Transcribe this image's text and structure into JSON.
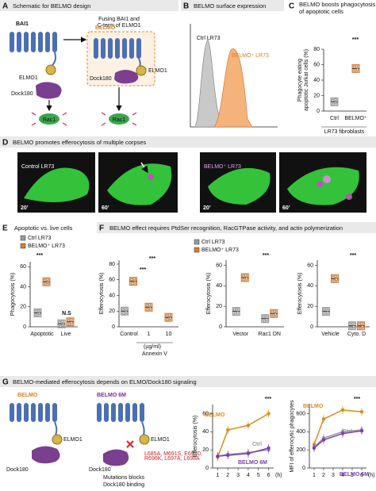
{
  "panels": {
    "a": {
      "letter": "A",
      "title": "Schematic for BELMO design",
      "bai1": "BAI1",
      "arrow_text": [
        "Fusing BAI1 and",
        "C-term of ELMO1"
      ],
      "belmo": "BELMO",
      "elmo1_left": "ELMO1",
      "dock_left": "Dock180",
      "rac_left": "Rac1",
      "elmo1_right": "ELMO1",
      "dock_right": "Dock180",
      "rac_right": "Rac1"
    },
    "b": {
      "letter": "B",
      "title": "BELMO surface expression",
      "ctrl": "Ctrl LR73",
      "belmo": "BELMO⁺ LR73"
    },
    "c": {
      "letter": "C",
      "title_lines": [
        "BELMO boosts phagocytosis",
        "of apoptotic cells"
      ],
      "xlabel": "LR73 fibroblasts"
    },
    "d": {
      "letter": "D",
      "title": "BELMO promotes efferocytosis of multiple corpses",
      "images": [
        {
          "label": "Control LR73",
          "time": "20’"
        },
        {
          "time": "60’"
        },
        {
          "label": "BELMO⁺ LR73",
          "time": "20’"
        },
        {
          "time": "60’"
        }
      ]
    },
    "e": {
      "letter": "E",
      "title": "Apoptotic vs. live cells"
    },
    "f": {
      "letter": "F",
      "title": "BELMO effect requires PtdSer recognition, RacGTPase activity, and actin polymerization",
      "unit": "(µg/ml)",
      "group": "Annexin V"
    },
    "g": {
      "letter": "G",
      "title": "BELMO-mediated efferocytosis depends on ELMO/Dock180 signaling",
      "left": {
        "name": "BELMO",
        "elmo1": "ELMO1",
        "dock": "Dock180"
      },
      "right": {
        "name": "BELMO 6M",
        "elmo1": "ELMO1",
        "dock": "Dock180",
        "note_lines": [
          "Mutations blocks",
          "Dock180 binding"
        ],
        "mutations": [
          "L685A, M691S, E692D,",
          "R696K, L697A, L698A"
        ]
      }
    }
  },
  "charts": [
    {
      "type": "box",
      "ylabel_lines": [
        "Phagocyte eating",
        "apoptotic Jurkat cells (%)"
      ],
      "ylim": [
        0,
        80
      ],
      "yticks": [
        0,
        20,
        40,
        60,
        80
      ],
      "categories": [
        "Ctrl",
        "BELMO⁺"
      ],
      "series": [
        {
          "color": "#9a9a9a",
          "values": [
            12,
            null
          ]
        },
        {
          "color": "#e07b2a",
          "values": [
            null,
            55
          ]
        }
      ],
      "annotations": [
        "***"
      ]
    },
    {
      "type": "box",
      "ylabel_lines": [
        "Phagocytosis (%)"
      ],
      "ylim": [
        0,
        65
      ],
      "yticks": [
        0,
        20,
        40,
        60
      ],
      "categories": [
        "Apoptotic",
        "Live"
      ],
      "series": [
        {
          "name": "Ctrl LR73",
          "color": "#9a9a9a",
          "values": [
            14,
            3
          ]
        },
        {
          "name": "BELMO⁺ LR73",
          "color": "#e07b2a",
          "values": [
            45,
            5
          ]
        }
      ],
      "annotations": [
        "***",
        "N.S"
      ]
    },
    {
      "type": "box",
      "ylabel_lines": [
        "Efferocytosis (%)"
      ],
      "ylim": [
        0,
        85
      ],
      "yticks": [
        0,
        20,
        40,
        60,
        80
      ],
      "categories": [
        "Control",
        "1",
        "10"
      ],
      "series": [
        {
          "name": "Ctrl LR73",
          "color": "#9a9a9a",
          "values": [
            20,
            null,
            null
          ]
        },
        {
          "name": "BELMO⁺ LR73",
          "color": "#e07b2a",
          "values": [
            58,
            25,
            12
          ]
        }
      ],
      "annotations": [
        "***",
        "***"
      ]
    },
    {
      "type": "box",
      "ylabel_lines": [
        "Efferocytosis (%)"
      ],
      "ylim": [
        0,
        65
      ],
      "yticks": [
        0,
        20,
        40,
        60
      ],
      "categories": [
        "Vector",
        "Rac1 DN"
      ],
      "series": [
        {
          "color": "#9a9a9a",
          "values": [
            15,
            8
          ]
        },
        {
          "color": "#e07b2a",
          "values": [
            48,
            13
          ]
        }
      ],
      "annotations": [
        "***"
      ]
    },
    {
      "type": "box",
      "ylabel_lines": [
        "Efferocytosis (%)"
      ],
      "ylim": [
        0,
        65
      ],
      "yticks": [
        0,
        20,
        40,
        60
      ],
      "categories": [
        "Vehicle",
        "Cyto. D"
      ],
      "series": [
        {
          "color": "#9a9a9a",
          "values": [
            15,
            1
          ]
        },
        {
          "color": "#e07b2a",
          "values": [
            47,
            1
          ]
        }
      ],
      "annotations": [
        "***"
      ]
    },
    {
      "type": "line",
      "ylabel_lines": [
        "Efferocytosis (%)"
      ],
      "xlim": [
        0.5,
        6.5
      ],
      "xticks": [
        1,
        2,
        3,
        4,
        5,
        6
      ],
      "xunit": "(h)",
      "ylim": [
        0,
        70
      ],
      "yticks": [
        0,
        20,
        40,
        60
      ],
      "series": [
        {
          "name": "BELMO",
          "color": "#e08a1e",
          "x": [
            1,
            2,
            4,
            6
          ],
          "values": [
            12,
            42,
            47,
            60
          ]
        },
        {
          "name": "Ctrl",
          "color": "#999999",
          "x": [
            1,
            2,
            4,
            6
          ],
          "values": [
            13,
            15,
            17,
            20
          ]
        },
        {
          "name": "BELMO 6M",
          "color": "#7b3fb5",
          "x": [
            1,
            2,
            4,
            6
          ],
          "values": [
            13,
            14,
            16,
            22
          ]
        }
      ],
      "annotations": [
        "***"
      ]
    },
    {
      "type": "line",
      "ylabel_lines": [
        "MFI of efferocytic phagocytes"
      ],
      "xlim": [
        0.5,
        6.5
      ],
      "xticks": [
        1,
        2,
        3,
        4,
        5,
        6
      ],
      "xunit": "(h)",
      "ylim": [
        0,
        700
      ],
      "yticks": [
        0,
        200,
        400,
        600
      ],
      "series": [
        {
          "name": "BELMO",
          "color": "#e08a1e",
          "x": [
            1,
            2,
            4,
            6
          ],
          "values": [
            260,
            540,
            640,
            620
          ]
        },
        {
          "name": "Ctrl",
          "color": "#999999",
          "x": [
            1,
            2,
            4,
            6
          ],
          "values": [
            230,
            330,
            400,
            420
          ]
        },
        {
          "name": "BELMO 6M",
          "color": "#7b3fb5",
          "x": [
            1,
            2,
            4,
            6
          ],
          "values": [
            220,
            310,
            380,
            410
          ]
        }
      ],
      "annotations": [
        "***"
      ]
    }
  ]
}
